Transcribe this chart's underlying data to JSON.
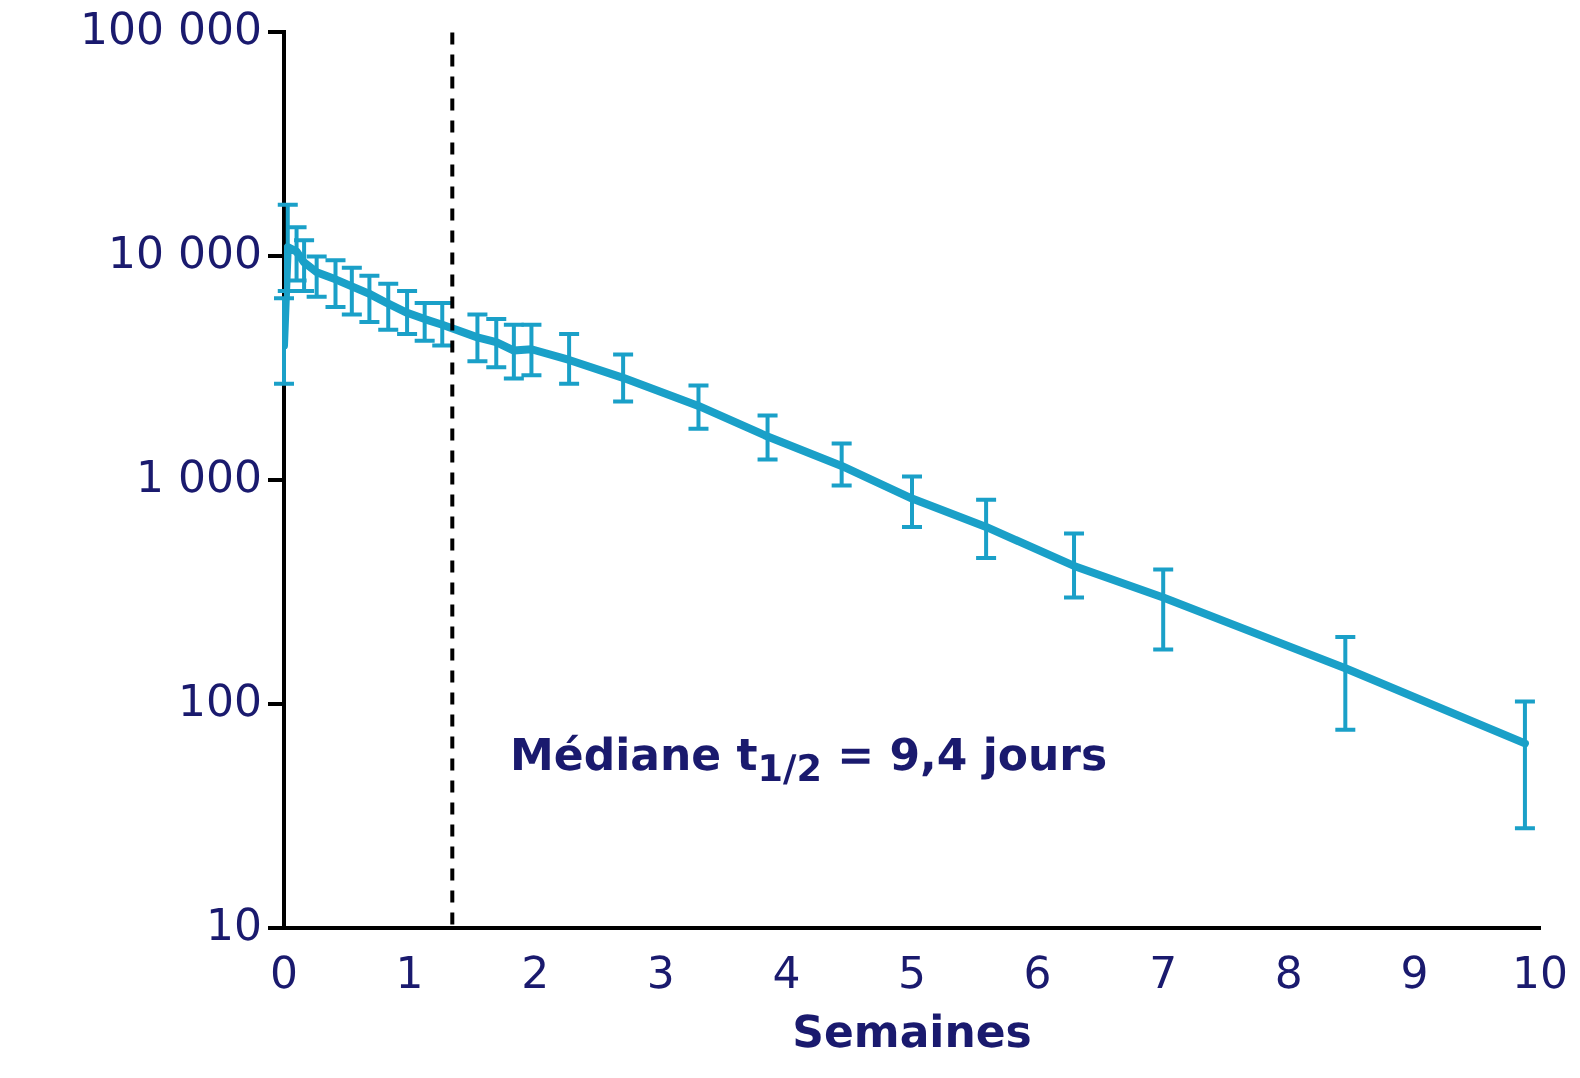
{
  "chart_data": {
    "type": "line",
    "xlabel": "Semaines",
    "log": "y",
    "grid": false,
    "legend": false,
    "marker": "none",
    "line_style": "solid",
    "xlim": [
      0,
      10
    ],
    "xticks": [
      0,
      1,
      2,
      3,
      4,
      5,
      6,
      7,
      8,
      9,
      10
    ],
    "ylim": [
      10,
      100000
    ],
    "yticks": [
      {
        "value": 10,
        "label": "10"
      },
      {
        "value": 100,
        "label": "100"
      },
      {
        "value": 1000,
        "label": "1 000"
      },
      {
        "value": 10000,
        "label": "10 000"
      },
      {
        "value": 100000,
        "label": "100 000"
      }
    ],
    "ref_lines": [
      {
        "axis": "x",
        "value": 1.34,
        "color": "#000000",
        "line_style": "dashed"
      }
    ],
    "annotations": [
      "Médiane t$_{1/2}$ = 9,4 jours"
    ],
    "series": [
      {
        "color": "#1aa0c8",
        "x": [
          0,
          0.03,
          0.1,
          0.16,
          0.26,
          0.41,
          0.54,
          0.68,
          0.83,
          0.98,
          1.12,
          1.26,
          1.54,
          1.69,
          1.83,
          1.97,
          2.27,
          2.7,
          3.3,
          3.85,
          4.44,
          5.0,
          5.59,
          6.29,
          7.0,
          8.45,
          9.88
        ],
        "values": [
          4000,
          11000,
          10500,
          9400,
          8500,
          7900,
          7350,
          6800,
          6150,
          5600,
          5250,
          4950,
          4350,
          4140,
          3800,
          3850,
          3450,
          2870,
          2150,
          1570,
          1160,
          830,
          620,
          415,
          300,
          145,
          67
        ],
        "errors": [
          [
            2700,
            6500
          ],
          [
            7000,
            17000
          ],
          [
            7800,
            13500
          ],
          [
            7000,
            11800
          ],
          [
            6600,
            10000
          ],
          [
            5950,
            9600
          ],
          [
            5500,
            8900
          ],
          [
            5100,
            8200
          ],
          [
            4700,
            7550
          ],
          [
            4500,
            7000
          ],
          [
            4200,
            6200
          ],
          [
            4000,
            6200
          ],
          [
            3400,
            5500
          ],
          [
            3200,
            5250
          ],
          [
            2850,
            4950
          ],
          [
            2950,
            4950
          ],
          [
            2700,
            4500
          ],
          [
            2250,
            3650
          ],
          [
            1700,
            2650
          ],
          [
            1240,
            1950
          ],
          [
            950,
            1460
          ],
          [
            620,
            1040
          ],
          [
            450,
            820
          ],
          [
            300,
            580
          ],
          [
            176,
            400
          ],
          [
            77,
            200
          ],
          [
            28,
            103
          ]
        ]
      }
    ]
  }
}
